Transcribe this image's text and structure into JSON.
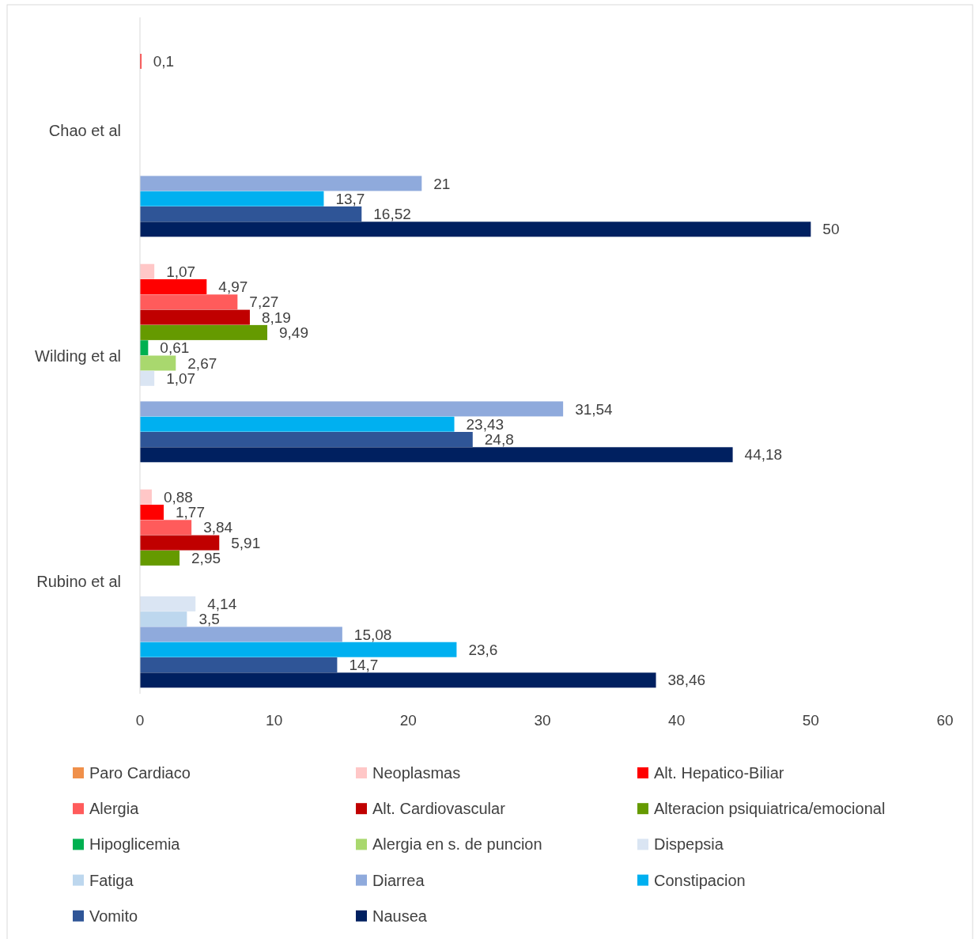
{
  "chart_data": {
    "type": "bar",
    "orientation": "horizontal",
    "categories": [
      "Chao et al",
      "Wilding et al",
      "Rubino et al"
    ],
    "xlim": [
      0,
      60
    ],
    "xticks": [
      0,
      10,
      20,
      30,
      40,
      50,
      60
    ],
    "legend": "bottom",
    "series": [
      {
        "name": "Paro Cardiaco",
        "color": "#f0904a",
        "values": [
          null,
          null,
          null
        ],
        "value_labels": [
          null,
          null,
          null
        ]
      },
      {
        "name": "Neoplasmas",
        "color": "#ffc7c7",
        "values": [
          null,
          1.07,
          0.88
        ],
        "value_labels": [
          null,
          "1,07",
          "0,88"
        ]
      },
      {
        "name": "Alt. Hepatico-Biliar",
        "color": "#ff0000",
        "values": [
          0.1,
          4.97,
          1.77
        ],
        "value_labels": [
          "0,1",
          "4,97",
          "1,77"
        ]
      },
      {
        "name": "Alergia",
        "color": "#ff5b5b",
        "values": [
          null,
          7.27,
          3.84
        ],
        "value_labels": [
          null,
          "7,27",
          "3,84"
        ]
      },
      {
        "name": "Alt. Cardiovascular",
        "color": "#c00000",
        "values": [
          null,
          8.19,
          5.91
        ],
        "value_labels": [
          null,
          "8,19",
          "5,91"
        ]
      },
      {
        "name": "Alteracion psiquiatrica/emocional",
        "color": "#659a00",
        "values": [
          null,
          9.49,
          2.95
        ],
        "value_labels": [
          null,
          "9,49",
          "2,95"
        ]
      },
      {
        "name": "Hipoglicemia",
        "color": "#00b050",
        "values": [
          null,
          0.61,
          null
        ],
        "value_labels": [
          null,
          "0,61",
          null
        ]
      },
      {
        "name": "Alergia en s. de puncion",
        "color": "#a9d86e",
        "values": [
          null,
          2.67,
          null
        ],
        "value_labels": [
          null,
          "2,67",
          null
        ]
      },
      {
        "name": "Dispepsia",
        "color": "#dae5f3",
        "values": [
          null,
          1.07,
          4.14
        ],
        "value_labels": [
          null,
          "1,07",
          "4,14"
        ]
      },
      {
        "name": "Fatiga",
        "color": "#bdd7ee",
        "values": [
          null,
          null,
          3.5
        ],
        "value_labels": [
          null,
          null,
          "3,5"
        ]
      },
      {
        "name": "Diarrea",
        "color": "#8faadc",
        "values": [
          21,
          31.54,
          15.08
        ],
        "value_labels": [
          "21",
          "31,54",
          "15,08"
        ]
      },
      {
        "name": "Constipacion",
        "color": "#00b0f0",
        "values": [
          13.7,
          23.43,
          23.6
        ],
        "value_labels": [
          "13,7",
          "23,43",
          "23,6"
        ]
      },
      {
        "name": "Vomito",
        "color": "#2f5597",
        "values": [
          16.52,
          24.8,
          14.7
        ],
        "value_labels": [
          "16,52",
          "24,8",
          "14,7"
        ]
      },
      {
        "name": "Nausea",
        "color": "#002060",
        "values": [
          50,
          44.18,
          38.46
        ],
        "value_labels": [
          "50",
          "44,18",
          "38,46"
        ]
      }
    ]
  }
}
